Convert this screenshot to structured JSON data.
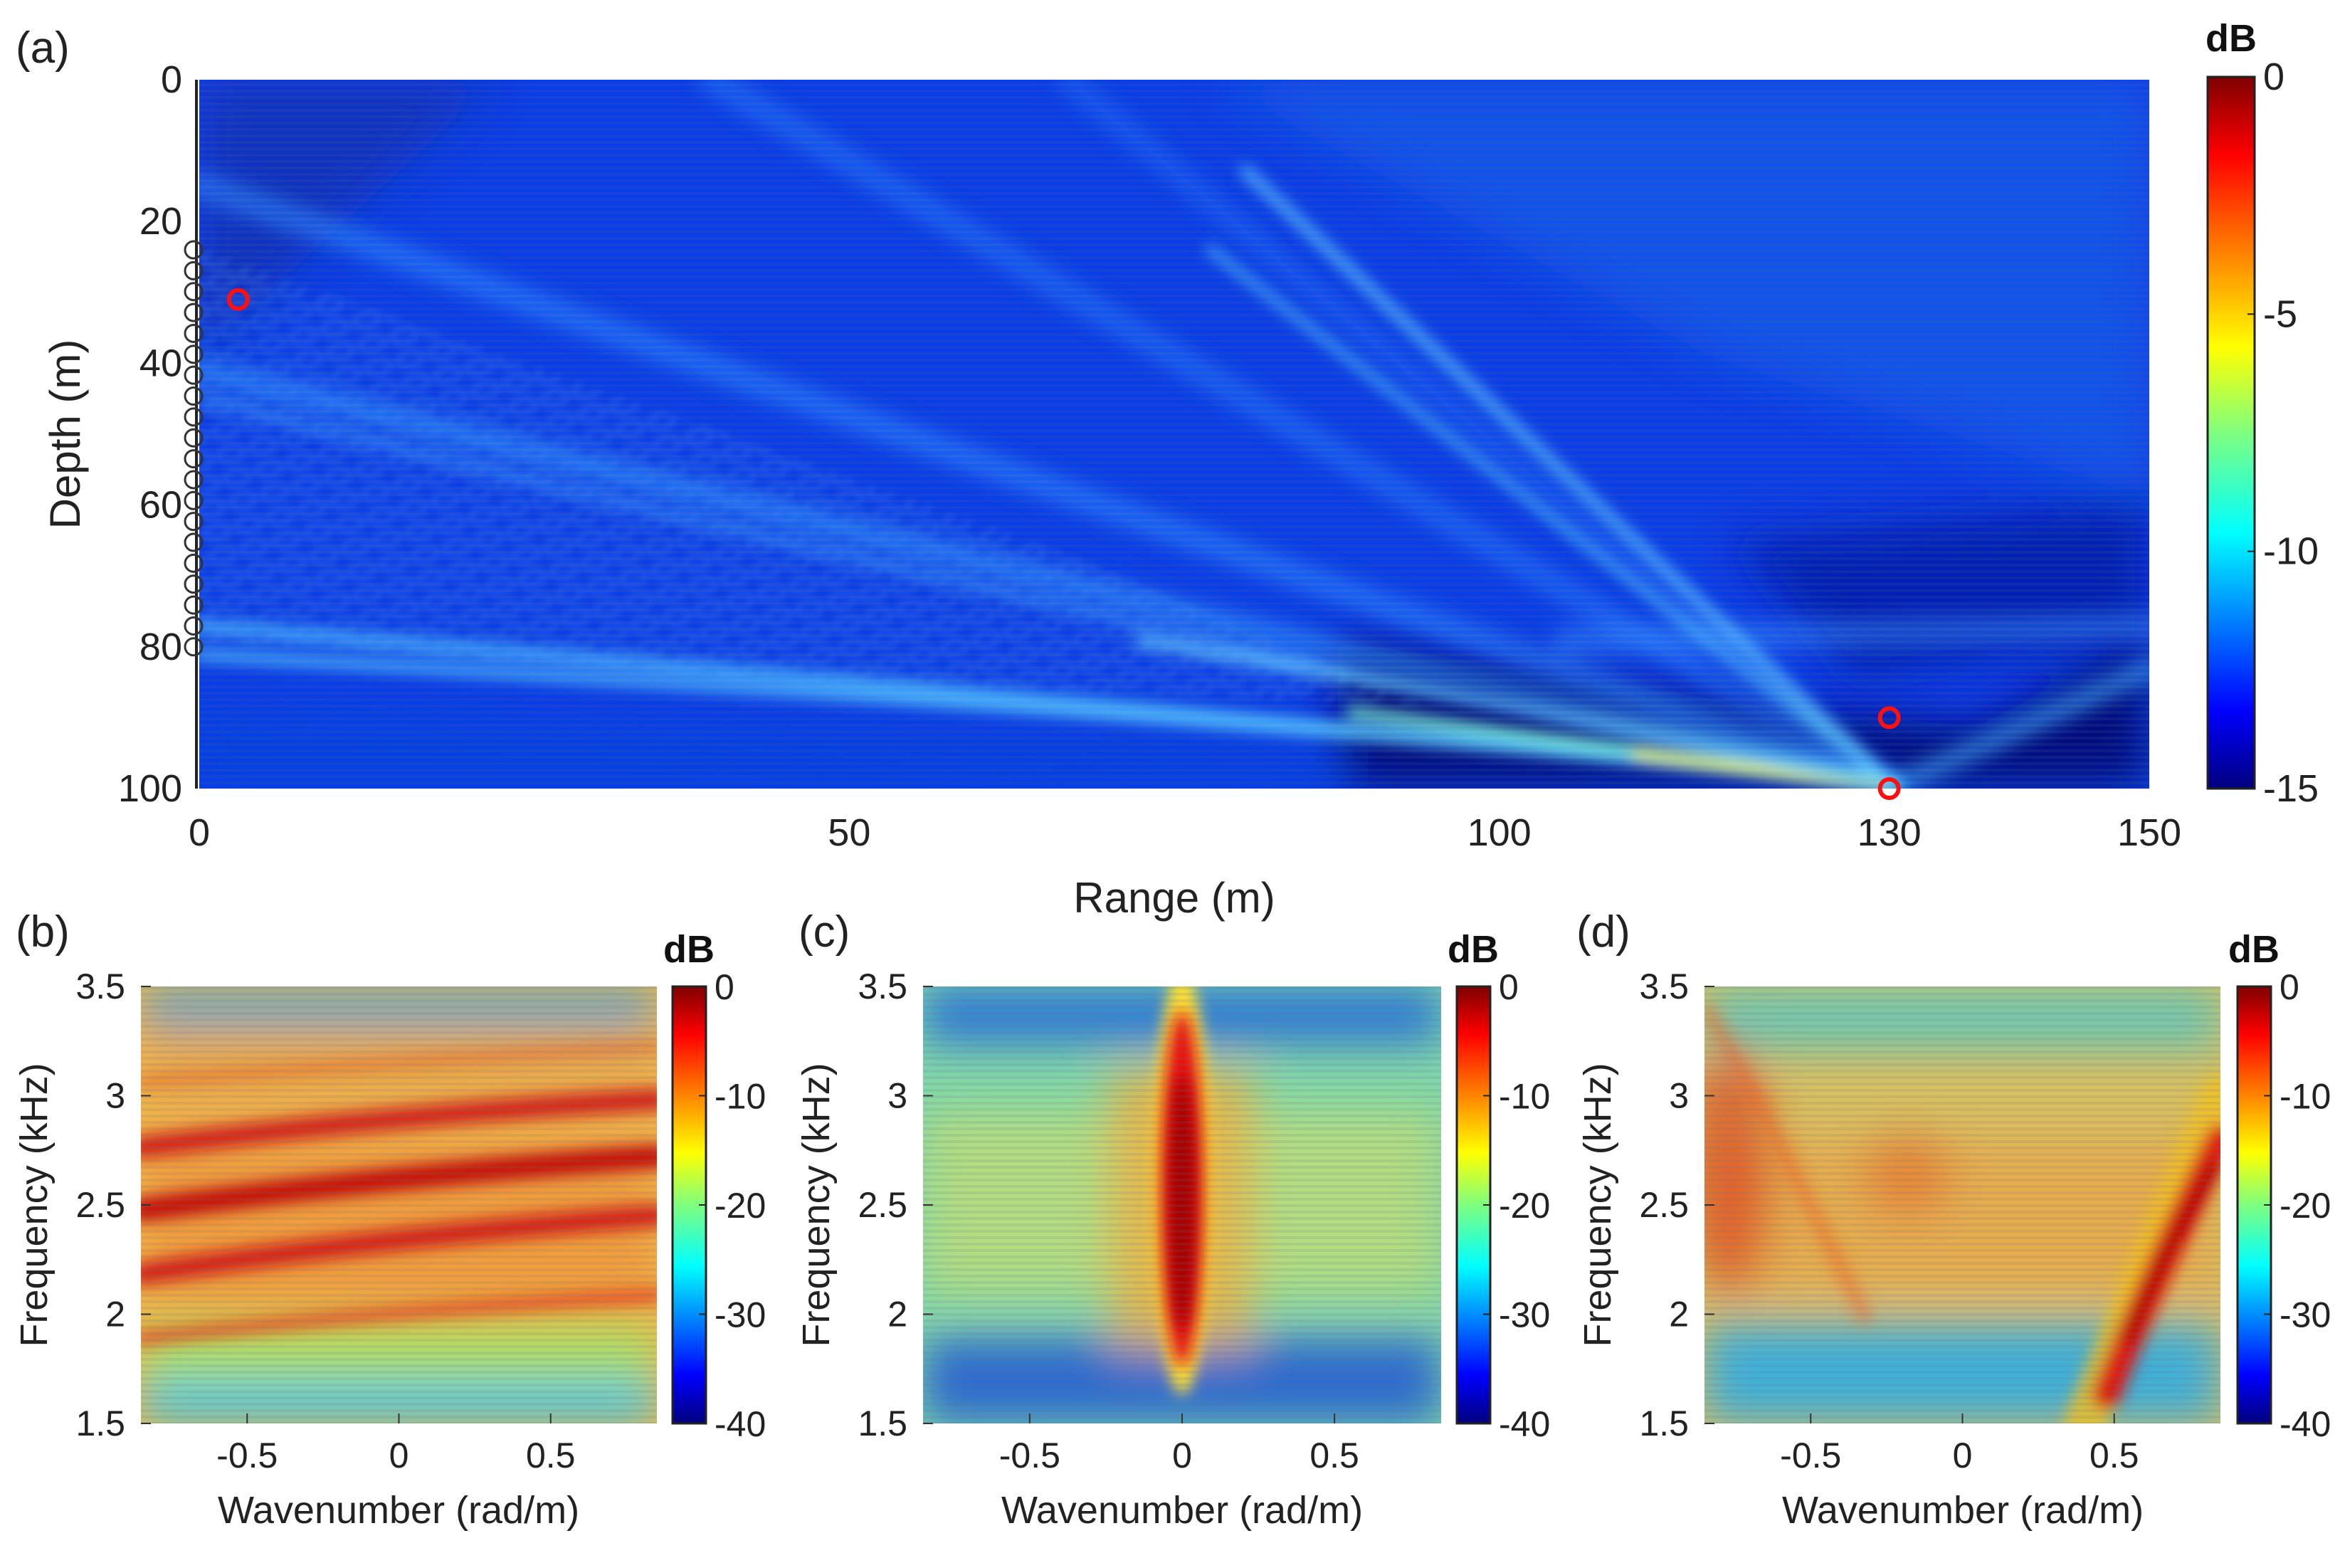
{
  "chart_data": [
    {
      "id": "a",
      "type": "heatmap",
      "panel_label": "(a)",
      "xlabel": "Range (m)",
      "ylabel": "Depth (m)",
      "xlim": [
        0,
        150
      ],
      "ylim": [
        100,
        0
      ],
      "xticks": [
        0,
        50,
        100,
        130,
        150
      ],
      "yticks": [
        0,
        20,
        40,
        60,
        80,
        100
      ],
      "colorbar": {
        "unit": "dB",
        "range": [
          -15,
          0
        ],
        "ticks": [
          0,
          -5,
          -10,
          -15
        ]
      },
      "array_elements": {
        "range": 0,
        "depth_start": 24,
        "depth_end": 80,
        "count": 20
      },
      "markers": [
        {
          "range": 3,
          "depth": 31
        },
        {
          "range": 130,
          "depth": 90
        },
        {
          "range": 130,
          "depth": 100
        }
      ]
    },
    {
      "id": "b",
      "type": "heatmap",
      "panel_label": "(b)",
      "xlabel": "Wavenumber (rad/m)",
      "ylabel": "Frequency (kHz)",
      "xlim": [
        -0.85,
        0.85
      ],
      "ylim": [
        1.5,
        3.5
      ],
      "xticks": [
        -0.5,
        0,
        0.5
      ],
      "yticks": [
        1.5,
        2,
        2.5,
        3,
        3.5
      ],
      "colorbar": {
        "unit": "dB",
        "range": [
          -40,
          0
        ],
        "ticks": [
          0,
          -10,
          -20,
          -30,
          -40
        ]
      }
    },
    {
      "id": "c",
      "type": "heatmap",
      "panel_label": "(c)",
      "xlabel": "Wavenumber (rad/m)",
      "ylabel": "Frequency (kHz)",
      "xlim": [
        -0.85,
        0.85
      ],
      "ylim": [
        1.5,
        3.5
      ],
      "xticks": [
        -0.5,
        0,
        0.5
      ],
      "yticks": [
        1.5,
        2,
        2.5,
        3,
        3.5
      ],
      "colorbar": {
        "unit": "dB",
        "range": [
          -40,
          0
        ],
        "ticks": [
          0,
          -10,
          -20,
          -30,
          -40
        ]
      }
    },
    {
      "id": "d",
      "type": "heatmap",
      "panel_label": "(d)",
      "xlabel": "Wavenumber (rad/m)",
      "ylabel": "Frequency (kHz)",
      "xlim": [
        -0.85,
        0.85
      ],
      "ylim": [
        1.5,
        3.5
      ],
      "xticks": [
        -0.5,
        0,
        0.5
      ],
      "yticks": [
        1.5,
        2,
        2.5,
        3,
        3.5
      ],
      "colorbar": {
        "unit": "dB",
        "range": [
          -40,
          0
        ],
        "ticks": [
          0,
          -10,
          -20,
          -30,
          -40
        ]
      }
    }
  ]
}
